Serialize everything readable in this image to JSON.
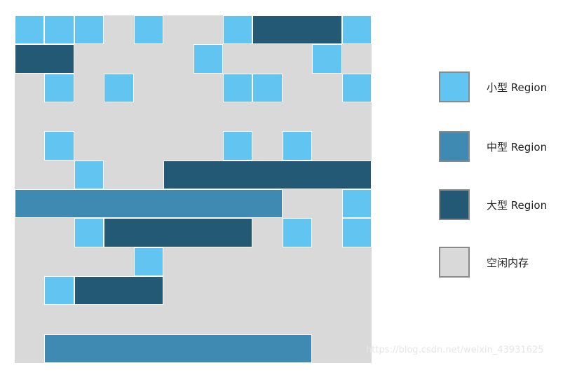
{
  "colors": {
    "small": "#62c4f1",
    "medium": "#3f8ab3",
    "large": "#245975",
    "free": "#d9d9d9"
  },
  "legend": [
    {
      "key": "small",
      "label": "小型 Region"
    },
    {
      "key": "medium",
      "label": "中型 Region"
    },
    {
      "key": "large",
      "label": "大型 Region"
    },
    {
      "key": "free",
      "label": "空闲内存"
    }
  ],
  "grid": {
    "cols": 12,
    "rows": 12,
    "regions": [
      {
        "type": "small",
        "row": 0,
        "col": 0,
        "span": 1
      },
      {
        "type": "small",
        "row": 0,
        "col": 1,
        "span": 1
      },
      {
        "type": "small",
        "row": 0,
        "col": 2,
        "span": 1
      },
      {
        "type": "small",
        "row": 0,
        "col": 4,
        "span": 1
      },
      {
        "type": "small",
        "row": 0,
        "col": 7,
        "span": 1
      },
      {
        "type": "large",
        "row": 0,
        "col": 8,
        "span": 3
      },
      {
        "type": "small",
        "row": 0,
        "col": 11,
        "span": 1
      },
      {
        "type": "large",
        "row": 1,
        "col": 0,
        "span": 2
      },
      {
        "type": "small",
        "row": 1,
        "col": 6,
        "span": 1
      },
      {
        "type": "small",
        "row": 1,
        "col": 10,
        "span": 1
      },
      {
        "type": "small",
        "row": 2,
        "col": 1,
        "span": 1
      },
      {
        "type": "small",
        "row": 2,
        "col": 3,
        "span": 1
      },
      {
        "type": "small",
        "row": 2,
        "col": 7,
        "span": 1
      },
      {
        "type": "small",
        "row": 2,
        "col": 8,
        "span": 1
      },
      {
        "type": "small",
        "row": 2,
        "col": 11,
        "span": 1
      },
      {
        "type": "small",
        "row": 4,
        "col": 1,
        "span": 1
      },
      {
        "type": "small",
        "row": 4,
        "col": 7,
        "span": 1
      },
      {
        "type": "small",
        "row": 4,
        "col": 9,
        "span": 1
      },
      {
        "type": "small",
        "row": 5,
        "col": 2,
        "span": 1
      },
      {
        "type": "large",
        "row": 5,
        "col": 5,
        "span": 7
      },
      {
        "type": "medium",
        "row": 6,
        "col": 0,
        "span": 9
      },
      {
        "type": "small",
        "row": 6,
        "col": 11,
        "span": 1
      },
      {
        "type": "small",
        "row": 7,
        "col": 2,
        "span": 1
      },
      {
        "type": "large",
        "row": 7,
        "col": 3,
        "span": 5
      },
      {
        "type": "small",
        "row": 7,
        "col": 9,
        "span": 1
      },
      {
        "type": "small",
        "row": 7,
        "col": 11,
        "span": 1
      },
      {
        "type": "small",
        "row": 8,
        "col": 4,
        "span": 1
      },
      {
        "type": "small",
        "row": 9,
        "col": 1,
        "span": 1
      },
      {
        "type": "large",
        "row": 9,
        "col": 2,
        "span": 3
      },
      {
        "type": "medium",
        "row": 11,
        "col": 1,
        "span": 9
      }
    ]
  },
  "watermark": "https://blog.csdn.net/weixin_43931625"
}
